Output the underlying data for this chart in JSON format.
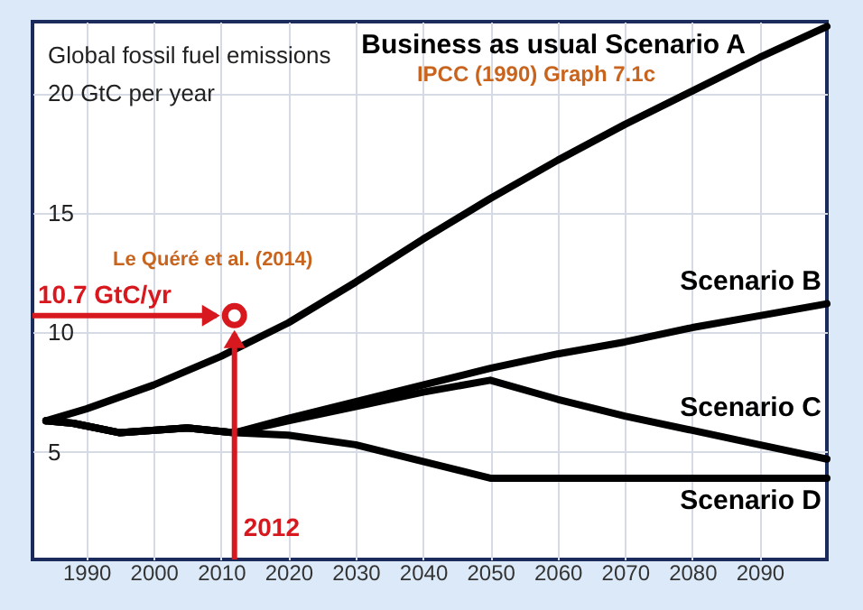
{
  "chart_data": {
    "type": "line",
    "ylabel": "Global fossil fuel emissions",
    "xlim": [
      1982,
      2100
    ],
    "ylim": [
      0.5,
      23
    ],
    "xticks": [
      1990,
      2000,
      2010,
      2020,
      2030,
      2040,
      2050,
      2060,
      2070,
      2080,
      2090
    ],
    "yticks": [
      5,
      10,
      15,
      {
        "value": 20,
        "label": "20 GtC per year"
      }
    ],
    "grid": true,
    "series": [
      {
        "name": "Business as usual Scenario A",
        "color": "#000000",
        "x": [
          1984,
          1990,
          2000,
          2010,
          2020,
          2030,
          2040,
          2050,
          2060,
          2070,
          2080,
          2090,
          2100
        ],
        "values": [
          6.3,
          6.8,
          7.8,
          9.0,
          10.4,
          12.1,
          13.9,
          15.6,
          17.2,
          18.7,
          20.1,
          21.5,
          22.8
        ]
      },
      {
        "name": "Scenario B",
        "color": "#000000",
        "x": [
          1984,
          1988,
          1995,
          2005,
          2012,
          2020,
          2030,
          2040,
          2050,
          2060,
          2070,
          2080,
          2090,
          2100
        ],
        "values": [
          6.3,
          6.2,
          5.8,
          6.0,
          5.8,
          6.4,
          7.1,
          7.8,
          8.5,
          9.1,
          9.6,
          10.2,
          10.7,
          11.2
        ]
      },
      {
        "name": "Scenario C",
        "color": "#000000",
        "x": [
          1984,
          1988,
          1995,
          2005,
          2012,
          2020,
          2030,
          2040,
          2050,
          2060,
          2070,
          2080,
          2090,
          2100
        ],
        "values": [
          6.3,
          6.2,
          5.8,
          6.0,
          5.8,
          6.3,
          6.9,
          7.5,
          8.0,
          7.2,
          6.5,
          5.9,
          5.3,
          4.7
        ]
      },
      {
        "name": "Scenario D",
        "color": "#000000",
        "x": [
          1984,
          1988,
          1995,
          2005,
          2012,
          2020,
          2030,
          2040,
          2050,
          2060,
          2080,
          2100
        ],
        "values": [
          6.3,
          6.2,
          5.8,
          6.0,
          5.8,
          5.7,
          5.3,
          4.6,
          3.9,
          3.9,
          3.9,
          3.9
        ]
      },
      {
        "type": "scatter",
        "marker": "circle",
        "color": "#d7191f",
        "x": [
          2012
        ],
        "values": [
          10.7
        ]
      }
    ],
    "ref_lines": [
      {
        "axis": "y",
        "value": 10.7,
        "label": "10.7 GtC/yr",
        "color": "#d7191f"
      },
      {
        "axis": "x",
        "value": 2012,
        "label": "2012",
        "color": "#d7191f"
      }
    ],
    "annotations": [
      "IPCC (1990) Graph 7.1c",
      {
        "text": "Le Quéré et al. (2014)",
        "x": 2012,
        "y": 10.7
      }
    ]
  }
}
